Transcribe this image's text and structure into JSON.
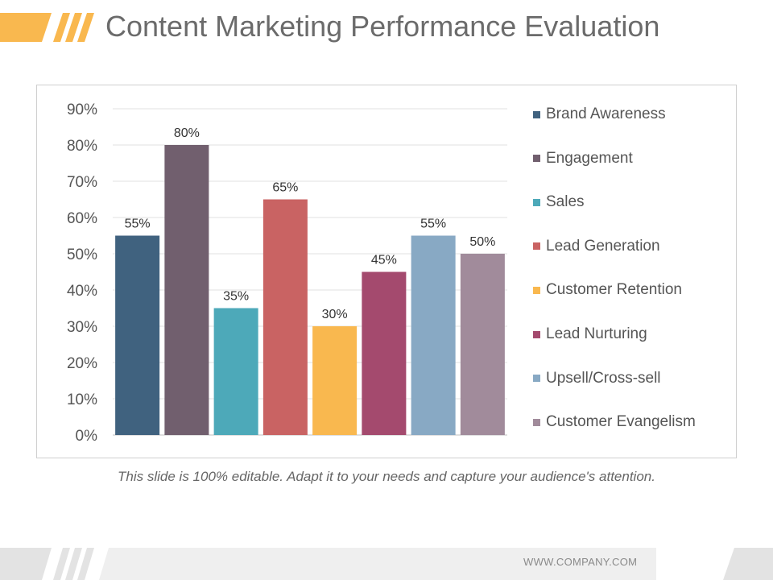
{
  "slide": {
    "title": "Content Marketing Performance Evaluation",
    "caption": "This slide is 100% editable. Adapt it to your needs and capture your audience's attention.",
    "footer_url": "WWW.COMPANY.COM",
    "accent_color": "#F9B84F",
    "header_icon": "slash-stripes-decoration",
    "footer_icon": "slash-stripes-decoration"
  },
  "chart_data": {
    "type": "bar",
    "title": "",
    "xlabel": "",
    "ylabel": "",
    "ylim": [
      0,
      90
    ],
    "yticks": [
      "0%",
      "10%",
      "20%",
      "30%",
      "40%",
      "50%",
      "60%",
      "70%",
      "80%",
      "90%"
    ],
    "grid": true,
    "legend_position": "right",
    "categories": [
      "Brand Awareness",
      "Engagement",
      "Sales",
      "Lead Generation",
      "Customer Retention",
      "Lead Nurturing",
      "Upsell/Cross-sell",
      "Customer Evangelism"
    ],
    "values": [
      55,
      80,
      35,
      65,
      30,
      45,
      55,
      50
    ],
    "data_labels": [
      "55%",
      "80%",
      "35%",
      "65%",
      "30%",
      "45%",
      "55%",
      "50%"
    ],
    "colors": [
      "#40627F",
      "#715F6E",
      "#4DA9B9",
      "#C96363",
      "#F9B84F",
      "#A44A6E",
      "#88A9C4",
      "#A18B9B"
    ]
  }
}
